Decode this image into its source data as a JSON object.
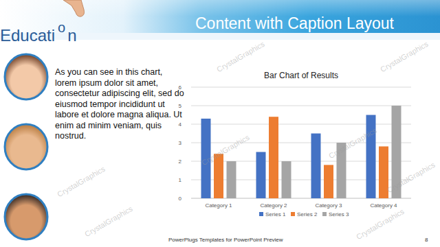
{
  "chart_data": {
    "type": "bar",
    "title": "Bar Chart of Results",
    "categories": [
      "Category 1",
      "Category 2",
      "Category 3",
      "Category 4"
    ],
    "series": [
      {
        "name": "Series 1",
        "color": "#4472c4",
        "values": [
          4.3,
          2.5,
          3.5,
          4.5
        ]
      },
      {
        "name": "Series 2",
        "color": "#ed7d31",
        "values": [
          2.4,
          4.4,
          1.8,
          2.8
        ]
      },
      {
        "name": "Series 3",
        "color": "#a5a5a5",
        "values": [
          2,
          2,
          3,
          5
        ]
      }
    ],
    "ylim": [
      0,
      6
    ],
    "yticks": [
      0,
      1,
      2,
      3,
      4,
      5,
      6
    ],
    "grid": true,
    "legend": "bottom"
  },
  "slide": {
    "logo": [
      "Educati",
      "o",
      "n"
    ],
    "title": "Content with Caption Layout",
    "caption": "As you can see in this chart, lorem ipsum dolor sit amet, consectetur adipiscing elit, sed do eiusmod tempor incididunt ut labore et dolore magna aliqua. Ut enim ad minim veniam, quis nostrud.",
    "footer": "PowerPlugs Templates for PowerPoint Preview",
    "page_number": 8,
    "watermark": "CrystalGraphics"
  }
}
